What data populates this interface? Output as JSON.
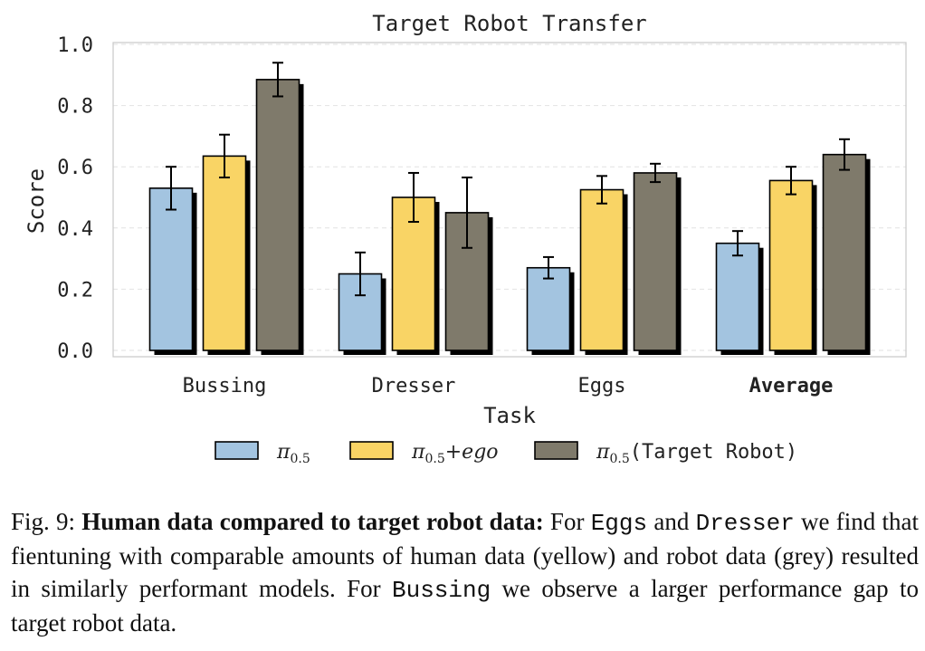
{
  "chart_data": {
    "type": "bar",
    "title": "Target Robot Transfer",
    "xlabel": "Task",
    "ylabel": "Score",
    "ylim": [
      0,
      1.0
    ],
    "yticks": [
      "0.0",
      "0.2",
      "0.4",
      "0.6",
      "0.8",
      "1.0"
    ],
    "grid": true,
    "legend_position": "bottom",
    "categories": [
      "Bussing",
      "Dresser",
      "Eggs",
      "Average"
    ],
    "bold_categories": [
      "Average"
    ],
    "series": [
      {
        "name": "π0.5",
        "legend_main": "π",
        "legend_sub": "0.5",
        "legend_suffix": "",
        "color": "#a3c4e0",
        "values": [
          0.53,
          0.25,
          0.27,
          0.35
        ],
        "err": [
          0.07,
          0.07,
          0.035,
          0.04
        ]
      },
      {
        "name": "π0.5+ego",
        "legend_main": "π",
        "legend_sub": "0.5",
        "legend_suffix": "+ego",
        "color": "#f9d465",
        "values": [
          0.635,
          0.5,
          0.525,
          0.555
        ],
        "err": [
          0.07,
          0.08,
          0.045,
          0.045
        ]
      },
      {
        "name": "π0.5(Target Robot)",
        "legend_main": "π",
        "legend_sub": "0.5",
        "legend_suffix": "(Target Robot)",
        "color": "#7f7a6b",
        "values": [
          0.885,
          0.45,
          0.58,
          0.64
        ],
        "err": [
          0.055,
          0.115,
          0.03,
          0.05
        ]
      }
    ]
  },
  "caption": {
    "prefix": "Fig. 9: ",
    "bold": "Human data compared to target robot data:",
    "t1": " For ",
    "code1": "Eggs",
    "t2": " and ",
    "code2": "Dresser",
    "t3": " we find that fientuning with comparable amounts of human data (yellow) and robot data (grey) resulted in similarly performant models. For ",
    "code3": "Bussing",
    "t4": " we observe a larger performance gap to target robot data."
  }
}
